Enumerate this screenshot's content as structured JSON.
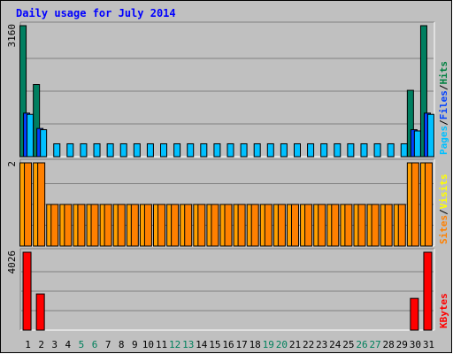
{
  "chart_data": {
    "type": "bar",
    "title": "Daily usage for July 2014",
    "categories": [
      "1",
      "2",
      "3",
      "4",
      "5",
      "6",
      "7",
      "8",
      "9",
      "10",
      "11",
      "12",
      "13",
      "14",
      "15",
      "16",
      "17",
      "18",
      "19",
      "20",
      "21",
      "22",
      "23",
      "24",
      "25",
      "26",
      "27",
      "28",
      "29",
      "30",
      "31"
    ],
    "weekend_days": [
      "5",
      "6",
      "12",
      "13",
      "19",
      "20",
      "26",
      "27"
    ],
    "panels": [
      {
        "name": "top",
        "ymax_label": "3160",
        "ymax": 3160,
        "legend": [
          "Pages",
          "/",
          "Files",
          "/",
          "Hits"
        ],
        "legend_colors": [
          "#00C0FF",
          "#000000",
          "#0040FF",
          "#000000",
          "#008040"
        ],
        "series": [
          {
            "name": "Hits",
            "color": "#007F60",
            "values": [
              3160,
              1740,
              null,
              null,
              null,
              null,
              null,
              null,
              null,
              null,
              null,
              null,
              null,
              null,
              null,
              null,
              null,
              null,
              null,
              null,
              null,
              null,
              null,
              null,
              null,
              null,
              null,
              null,
              null,
              1600,
              3160
            ]
          },
          {
            "name": "Files",
            "color": "#0040FF",
            "values": [
              1050,
              680,
              null,
              null,
              null,
              null,
              null,
              null,
              null,
              null,
              null,
              null,
              null,
              null,
              null,
              null,
              null,
              null,
              null,
              null,
              null,
              null,
              null,
              null,
              null,
              null,
              null,
              null,
              null,
              650,
              1050
            ]
          },
          {
            "name": "Pages",
            "color": "#00C0FF",
            "values": [
              1020,
              650,
              310,
              310,
              310,
              310,
              310,
              310,
              310,
              310,
              310,
              310,
              310,
              310,
              310,
              310,
              310,
              310,
              310,
              310,
              310,
              310,
              310,
              310,
              310,
              310,
              310,
              310,
              310,
              620,
              1020
            ]
          }
        ]
      },
      {
        "name": "middle",
        "ymax_label": "2",
        "ymax": 2,
        "legend": [
          "Sites",
          "/",
          "Visits"
        ],
        "legend_colors": [
          "#FF8000",
          "#000000",
          "#FFFF00"
        ],
        "series": [
          {
            "name": "Visits",
            "color": "#FFA000",
            "values": [
              2,
              2,
              1,
              1,
              1,
              1,
              1,
              1,
              1,
              1,
              1,
              1,
              1,
              1,
              1,
              1,
              1,
              1,
              1,
              1,
              1,
              1,
              1,
              1,
              1,
              1,
              1,
              1,
              1,
              2,
              2
            ]
          },
          {
            "name": "Sites",
            "color": "#FF8000",
            "values": [
              2,
              2,
              1,
              1,
              1,
              1,
              1,
              1,
              1,
              1,
              1,
              1,
              1,
              1,
              1,
              1,
              1,
              1,
              1,
              1,
              1,
              1,
              1,
              1,
              1,
              1,
              1,
              1,
              1,
              2,
              2
            ]
          }
        ]
      },
      {
        "name": "bottom",
        "ymax_label": "4026",
        "ymax": 4026,
        "legend": [
          "KBytes"
        ],
        "legend_colors": [
          "#FF0000"
        ],
        "series": [
          {
            "name": "KBytes",
            "color": "#FF0000",
            "values": [
              4026,
              1870,
              0,
              0,
              0,
              0,
              0,
              0,
              0,
              0,
              0,
              0,
              0,
              0,
              0,
              0,
              0,
              0,
              0,
              0,
              0,
              0,
              0,
              0,
              0,
              0,
              0,
              0,
              0,
              1640,
              4026
            ]
          }
        ]
      }
    ]
  }
}
